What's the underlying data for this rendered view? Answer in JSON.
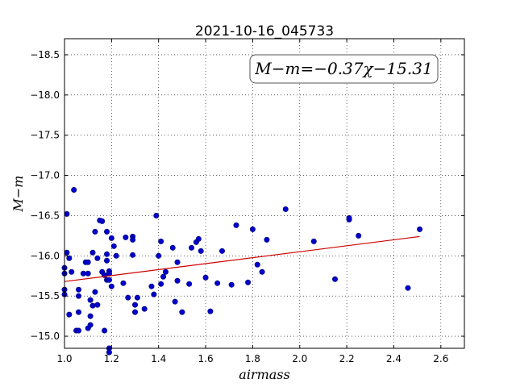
{
  "chart_data": {
    "type": "scatter",
    "title": "2021-10-16_045733",
    "xlabel": "airmass",
    "ylabel": "M−m",
    "xlim": [
      1.0,
      2.7
    ],
    "ylim": [
      -18.7,
      -14.85
    ],
    "y_inverted": true,
    "xticks": [
      1.0,
      1.2,
      1.4,
      1.6,
      1.8,
      2.0,
      2.2,
      2.4,
      2.6
    ],
    "xtick_labels": [
      "1.0",
      "1.2",
      "1.4",
      "1.6",
      "1.8",
      "2.0",
      "2.2",
      "2.4",
      "2.6"
    ],
    "yticks": [
      -15.0,
      -15.5,
      -16.0,
      -16.5,
      -17.0,
      -17.5,
      -18.0,
      -18.5
    ],
    "ytick_labels": [
      "−15.0",
      "−15.5",
      "−16.0",
      "−16.5",
      "−17.0",
      "−17.5",
      "−18.0",
      "−18.5"
    ],
    "grid": true,
    "annotation": "M−m=−0.37χ−15.31",
    "point_color": "#0000cc",
    "fit_color": "#cc0000",
    "fit_line": {
      "x": [
        1.0,
        2.51
      ],
      "y": [
        -15.68,
        -16.24
      ]
    },
    "points": [
      [
        1.0,
        -15.52
      ],
      [
        1.0,
        -15.58
      ],
      [
        1.0,
        -15.78
      ],
      [
        1.0,
        -15.85
      ],
      [
        1.01,
        -16.04
      ],
      [
        1.01,
        -16.52
      ],
      [
        1.02,
        -15.27
      ],
      [
        1.02,
        -15.97
      ],
      [
        1.03,
        -15.8
      ],
      [
        1.04,
        -16.82
      ],
      [
        1.05,
        -15.07
      ],
      [
        1.06,
        -15.07
      ],
      [
        1.06,
        -15.3
      ],
      [
        1.06,
        -15.5
      ],
      [
        1.06,
        -15.58
      ],
      [
        1.08,
        -15.78
      ],
      [
        1.09,
        -15.92
      ],
      [
        1.1,
        -15.1
      ],
      [
        1.1,
        -15.92
      ],
      [
        1.1,
        -15.78
      ],
      [
        1.11,
        -15.14
      ],
      [
        1.11,
        -15.25
      ],
      [
        1.11,
        -15.45
      ],
      [
        1.12,
        -15.38
      ],
      [
        1.12,
        -16.04
      ],
      [
        1.13,
        -15.55
      ],
      [
        1.13,
        -16.3
      ],
      [
        1.14,
        -15.39
      ],
      [
        1.14,
        -15.97
      ],
      [
        1.15,
        -16.44
      ],
      [
        1.16,
        -16.43
      ],
      [
        1.16,
        -15.8
      ],
      [
        1.17,
        -15.07
      ],
      [
        1.17,
        -15.76
      ],
      [
        1.18,
        -15.94
      ],
      [
        1.18,
        -16.02
      ],
      [
        1.18,
        -16.3
      ],
      [
        1.18,
        -15.7
      ],
      [
        1.19,
        -15.81
      ],
      [
        1.19,
        -15.7
      ],
      [
        1.19,
        -15.78
      ],
      [
        1.19,
        -14.8
      ],
      [
        1.19,
        -14.85
      ],
      [
        1.2,
        -15.62
      ],
      [
        1.2,
        -16.22
      ],
      [
        1.21,
        -16.12
      ],
      [
        1.22,
        -16.0
      ],
      [
        1.25,
        -15.66
      ],
      [
        1.26,
        -16.23
      ],
      [
        1.27,
        -15.48
      ],
      [
        1.29,
        -16.24
      ],
      [
        1.29,
        -16.01
      ],
      [
        1.29,
        -16.2
      ],
      [
        1.3,
        -15.39
      ],
      [
        1.3,
        -15.3
      ],
      [
        1.31,
        -15.48
      ],
      [
        1.34,
        -15.34
      ],
      [
        1.37,
        -15.62
      ],
      [
        1.38,
        -15.52
      ],
      [
        1.39,
        -16.5
      ],
      [
        1.4,
        -16.0
      ],
      [
        1.41,
        -16.18
      ],
      [
        1.41,
        -15.65
      ],
      [
        1.42,
        -15.74
      ],
      [
        1.43,
        -15.8
      ],
      [
        1.46,
        -16.1
      ],
      [
        1.47,
        -15.43
      ],
      [
        1.48,
        -15.92
      ],
      [
        1.48,
        -15.69
      ],
      [
        1.5,
        -15.3
      ],
      [
        1.53,
        -15.65
      ],
      [
        1.54,
        -16.1
      ],
      [
        1.56,
        -16.17
      ],
      [
        1.57,
        -16.21
      ],
      [
        1.58,
        -16.06
      ],
      [
        1.6,
        -15.73
      ],
      [
        1.62,
        -15.31
      ],
      [
        1.65,
        -15.66
      ],
      [
        1.67,
        -16.06
      ],
      [
        1.71,
        -15.64
      ],
      [
        1.73,
        -16.38
      ],
      [
        1.78,
        -15.67
      ],
      [
        1.8,
        -16.33
      ],
      [
        1.82,
        -15.89
      ],
      [
        1.84,
        -15.8
      ],
      [
        1.86,
        -16.2
      ],
      [
        1.94,
        -16.58
      ],
      [
        2.06,
        -16.18
      ],
      [
        2.15,
        -15.71
      ],
      [
        2.21,
        -16.45
      ],
      [
        2.21,
        -16.47
      ],
      [
        2.25,
        -16.25
      ],
      [
        2.46,
        -15.6
      ],
      [
        2.51,
        -16.33
      ]
    ]
  }
}
